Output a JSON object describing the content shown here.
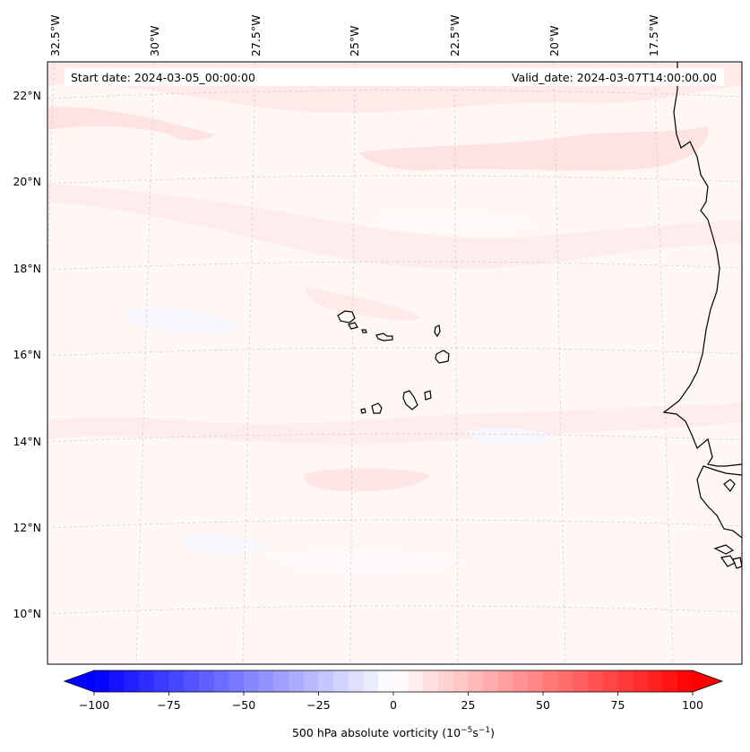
{
  "map": {
    "start_label": "Start date: 2024-03-05_00:00:00",
    "valid_label": "Valid_date: 2024-03-07T14:00:00.00",
    "lon_labels": [
      "32.5°W",
      "30°W",
      "27.5°W",
      "25°W",
      "22.5°W",
      "20°W",
      "17.5°W"
    ],
    "lat_labels": [
      "22°N",
      "20°N",
      "18°N",
      "16°N",
      "14°N",
      "12°N",
      "10°N"
    ],
    "coastline_color": "#000000",
    "gridline_color": "#c8c8c8",
    "background_color": "#fff6f6"
  },
  "colorbar": {
    "label_main": "500 hPa absolute vorticity (10",
    "label_exp1": "−5",
    "label_mid": "s",
    "label_exp2": "−1",
    "label_end": ")",
    "ticks": [
      "−100",
      "−75",
      "−50",
      "−25",
      "0",
      "25",
      "50",
      "75",
      "100"
    ],
    "min_color": "#0000ff",
    "max_color": "#ff0000",
    "mid_color": "#ffffff"
  }
}
